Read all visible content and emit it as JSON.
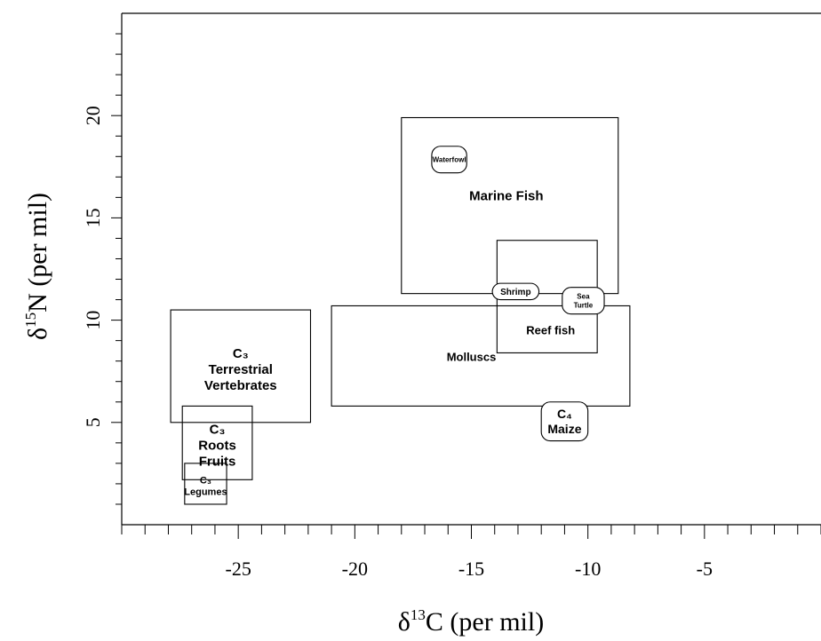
{
  "chart_data": {
    "type": "box",
    "xlabel": {
      "symbol": "δ",
      "sup": "13",
      "rest": "C (per mil)"
    },
    "ylabel": {
      "symbol": "δ",
      "sup": "15",
      "rest": "N (per mil)"
    },
    "xlim": [
      -30,
      0
    ],
    "ylim": [
      0,
      25
    ],
    "x_major_ticks": [
      -25,
      -20,
      -15,
      -10,
      -5
    ],
    "x_tick_labels": [
      "-25",
      "-20",
      "-15",
      "-10",
      "-5"
    ],
    "y_major_ticks": [
      5,
      10,
      15,
      20
    ],
    "y_tick_labels": [
      "5",
      "10",
      "15",
      "20"
    ],
    "grid": false,
    "regions": [
      {
        "id": "marine-fish",
        "label_lines": [
          "Marine Fish"
        ],
        "x": [
          -18,
          -8.7
        ],
        "y": [
          11.3,
          19.9
        ],
        "label_at": [
          -13.5,
          16.1
        ],
        "font_size": 15
      },
      {
        "id": "molluscs",
        "label_lines": [
          "Molluscs"
        ],
        "x": [
          -21,
          -8.2
        ],
        "y": [
          5.8,
          10.7
        ],
        "label_at": [
          -15,
          8.2
        ],
        "font_size": 13
      },
      {
        "id": "reef-fish",
        "label_lines": [
          "Reef fish"
        ],
        "x": [
          -13.9,
          -9.6
        ],
        "y": [
          8.4,
          13.9
        ],
        "label_at": [
          -11.6,
          9.5
        ],
        "font_size": 13
      },
      {
        "id": "c3-terrestrial-vertebrates",
        "label_lines": [
          "C₃",
          "Terrestrial",
          "Vertebrates"
        ],
        "x": [
          -27.9,
          -21.9
        ],
        "y": [
          5.0,
          10.5
        ],
        "label_at": [
          -24.9,
          7.6
        ],
        "font_size": 15
      },
      {
        "id": "c3-roots-fruits",
        "label_lines": [
          "C₃",
          "Roots",
          "Fruits"
        ],
        "x": [
          -27.4,
          -24.4
        ],
        "y": [
          2.2,
          5.8
        ],
        "label_at": [
          -25.9,
          3.9
        ],
        "font_size": 15
      },
      {
        "id": "c3-legumes",
        "label_lines": [
          "C₃",
          "Legumes"
        ],
        "x": [
          -27.3,
          -25.5
        ],
        "y": [
          1.0,
          3.0
        ],
        "label_at": [
          -26.4,
          1.9
        ],
        "font_size": 11
      }
    ],
    "pills": [
      {
        "id": "waterfowl",
        "label_lines": [
          "Waterfowl"
        ],
        "x": [
          -16.7,
          -15.2
        ],
        "y": [
          17.2,
          18.5
        ],
        "font_size": 8
      },
      {
        "id": "shrimp",
        "label_lines": [
          "Shrimp"
        ],
        "x": [
          -14.1,
          -12.1
        ],
        "y": [
          11.0,
          11.8
        ],
        "font_size": 10
      },
      {
        "id": "sea-turtle",
        "label_lines": [
          "Sea",
          "Turtle"
        ],
        "x": [
          -11.1,
          -9.3
        ],
        "y": [
          10.3,
          11.6
        ],
        "font_size": 8
      },
      {
        "id": "c4-maize",
        "label_lines": [
          "C₄",
          "Maize"
        ],
        "x": [
          -12.0,
          -10.0
        ],
        "y": [
          4.1,
          6.0
        ],
        "font_size": 14
      }
    ]
  }
}
